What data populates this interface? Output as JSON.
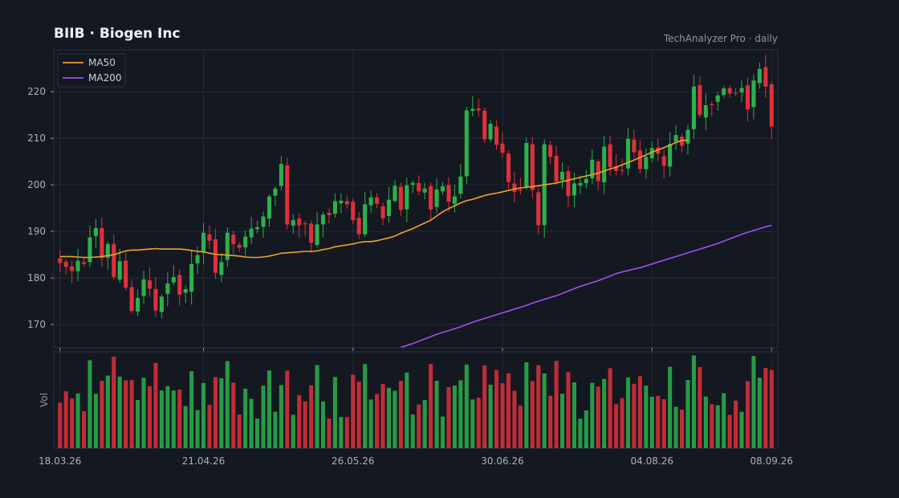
{
  "header": {
    "title": "BIIB  ·  Biogen Inc",
    "subtitle": "TechAnalyzer Pro · daily"
  },
  "colors": {
    "background": "#141821",
    "up": "#2ab24c",
    "down": "#e0303b",
    "ma50": "#f0a229",
    "ma200": "#a050f0",
    "grid": "#232a38"
  },
  "chart_data": {
    "type": "candlestick",
    "title": "BIIB  ·  Biogen Inc",
    "legend": {
      "placement": "top-left",
      "entries": [
        "MA50",
        "MA200"
      ]
    },
    "grid": true,
    "price_axis": {
      "ylim": [
        165,
        229
      ],
      "ticks": [
        170,
        180,
        190,
        200,
        210,
        220
      ]
    },
    "volume_axis": {
      "label": "Vol"
    },
    "x_tick_labels": [
      "18.03.26",
      "21.04.26",
      "26.05.26",
      "30.06.26",
      "04.08.26",
      "08.09.26"
    ],
    "first_date": "18.03.26",
    "last_date": "08.09.26",
    "close": [
      183.2,
      182.4,
      181.5,
      183.7,
      183.0,
      188.7,
      190.7,
      184.3,
      187.3,
      180.2,
      183.6,
      177.9,
      172.9,
      175.7,
      179.7,
      177.7,
      173.0,
      176.0,
      178.8,
      180.2,
      176.4,
      177.6,
      183.0,
      184.9,
      189.7,
      188.0,
      181.1,
      183.4,
      189.7,
      187.3,
      186.5,
      188.9,
      190.6,
      190.9,
      193.2,
      197.5,
      199.2,
      204.5,
      191.5,
      192.4,
      191.3,
      191.5,
      187.6,
      191.5,
      193.6,
      193.5,
      196.5,
      196.6,
      195.8,
      192.4,
      189.4,
      195.8,
      197.3,
      195.9,
      192.8,
      196.8,
      199.8,
      194.6,
      199.9,
      200.4,
      198.6,
      199.2,
      194.7,
      199.0,
      199.7,
      196.4,
      197.5,
      201.8,
      216.0,
      216.3,
      216.0,
      209.8,
      213.1,
      208.6,
      206.9,
      200.6,
      198.5,
      198.8,
      209.0,
      198.9,
      191.3,
      208.7,
      206.0,
      200.7,
      202.8,
      197.6,
      200.3,
      200.4,
      201.3,
      205.4,
      200.8,
      208.2,
      203.8,
      203.0,
      203.1,
      209.9,
      207.0,
      203.4,
      206.0,
      207.9,
      206.7,
      204.1,
      208.8,
      210.7,
      208.4,
      211.8,
      221.1,
      215.0,
      217.1,
      217.3,
      219.2,
      220.7,
      219.6,
      219.7,
      220.8,
      216.2,
      222.4,
      224.9,
      221.1,
      212.5
    ],
    "ma50": [
      184.6,
      184.6,
      184.6,
      184.5,
      184.4,
      184.4,
      184.5,
      184.6,
      184.8,
      185.0,
      185.4,
      185.8,
      186.0,
      186.0,
      186.1,
      186.2,
      186.3,
      186.2,
      186.2,
      186.2,
      186.2,
      186.1,
      185.9,
      185.7,
      185.6,
      185.3,
      185.1,
      185.0,
      184.9,
      184.8,
      184.7,
      184.5,
      184.4,
      184.4,
      184.5,
      184.7,
      185.0,
      185.3,
      185.4,
      185.5,
      185.6,
      185.7,
      185.7,
      185.8,
      186.1,
      186.3,
      186.7,
      186.9,
      187.1,
      187.3,
      187.6,
      187.8,
      187.8,
      188.0,
      188.3,
      188.6,
      189.0,
      189.6,
      190.1,
      190.6,
      191.2,
      191.8,
      192.4,
      193.3,
      194.2,
      194.9,
      195.5,
      196.1,
      196.6,
      196.9,
      197.3,
      197.7,
      198.0,
      198.2,
      198.5,
      198.8,
      199.1,
      199.3,
      199.5,
      199.6,
      199.8,
      200.0,
      200.2,
      200.4,
      200.7,
      201.0,
      201.3,
      201.6,
      201.9,
      202.2,
      202.5,
      203.0,
      203.4,
      203.8,
      204.3,
      204.8,
      205.3,
      205.9,
      206.4,
      207.0,
      207.5,
      208.0,
      208.5,
      209.1,
      209.5,
      209.6
    ],
    "ma200": [
      165.1,
      165.5,
      165.9,
      166.4,
      166.9,
      167.4,
      167.9,
      168.3,
      168.7,
      169.1,
      169.5,
      170.0,
      170.5,
      170.9,
      171.3,
      171.7,
      172.1,
      172.5,
      172.9,
      173.3,
      173.7,
      174.1,
      174.6,
      175.0,
      175.4,
      175.8,
      176.2,
      176.7,
      177.2,
      177.7,
      178.2,
      178.6,
      179.0,
      179.4,
      179.9,
      180.4,
      180.9,
      181.3,
      181.6,
      181.9,
      182.2,
      182.6,
      183.0,
      183.4,
      183.8,
      184.2,
      184.6,
      185.0,
      185.4,
      185.8,
      186.2,
      186.6,
      187.0,
      187.4,
      187.9,
      188.4,
      188.9,
      189.4,
      189.8,
      190.2,
      190.6,
      191.0,
      191.3
    ]
  }
}
